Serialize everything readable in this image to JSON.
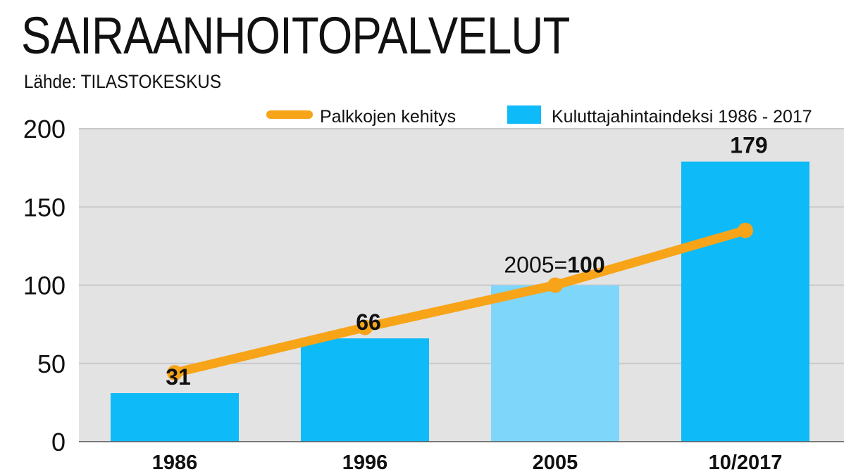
{
  "title": "SAIRAANHOITOPALVELUT",
  "subtitle": "Lähde: TILASTOKESKUS",
  "colors": {
    "bar": "#0ebaf7",
    "bar_highlight": "#7fd6fb",
    "line": "#f7a418",
    "plot_bg": "#e3e3e3",
    "grid": "#c9c9c9"
  },
  "chart_data": {
    "type": "bar",
    "title": "SAIRAANHOITOPALVELUT",
    "categories": [
      "1986",
      "1996",
      "2005",
      "10/2017"
    ],
    "ylim": [
      0,
      200
    ],
    "yticks": [
      "0",
      "50",
      "100",
      "150",
      "200"
    ],
    "grid": true,
    "legend_position": "top-right",
    "annotation": {
      "prefix": "2005=",
      "value": "100"
    },
    "series": [
      {
        "name": "Kuluttajahintaindeksi 1986 - 2017",
        "kind": "bar",
        "values": [
          31,
          66,
          100,
          179
        ],
        "labels": [
          "31",
          "66",
          "",
          "179"
        ]
      },
      {
        "name": "Palkkojen kehitys",
        "kind": "line",
        "values": [
          44,
          73,
          100,
          135
        ]
      }
    ]
  }
}
